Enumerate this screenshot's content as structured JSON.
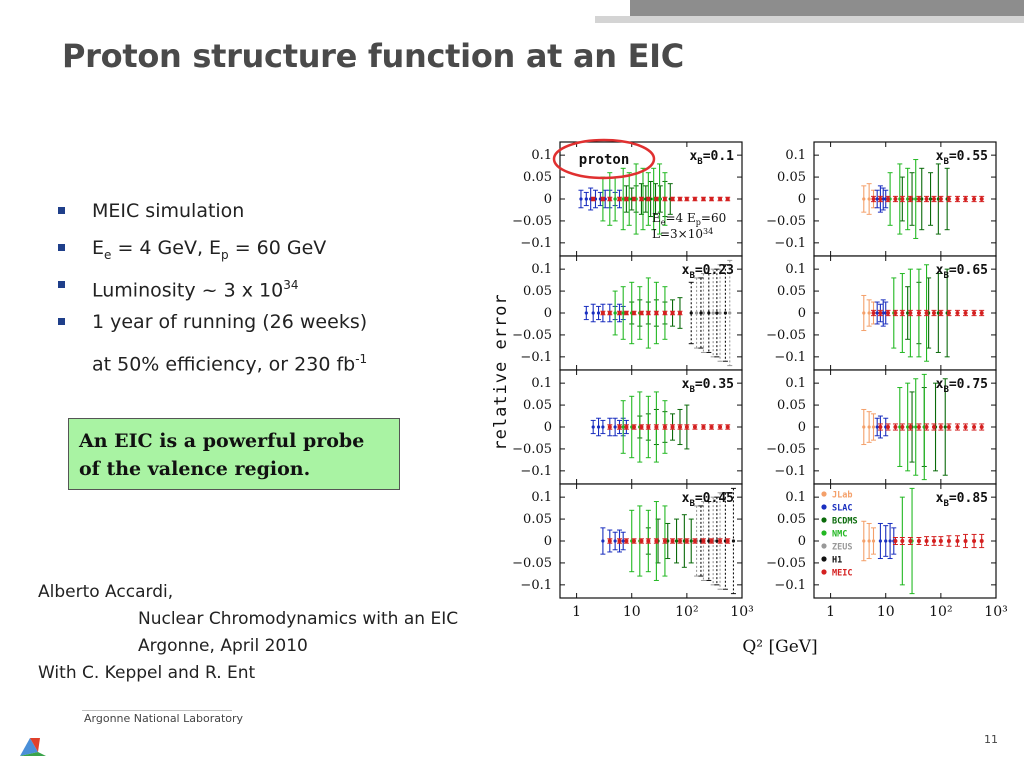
{
  "slide": {
    "title": "Proton structure function at an EIC",
    "bullets": [
      {
        "main": "MEIC simulation"
      },
      {
        "pre": "E",
        "sub": "e",
        "mid": " = 4 GeV, E",
        "sub2": "p",
        "post": " = 60 GeV"
      },
      {
        "pre": "Luminosity ~ 3 x 10",
        "sup": "34"
      },
      {
        "main": "1 year of running (26 weeks)"
      },
      {
        "pre": "at 50% efficiency, or 230 fb",
        "sup": "-1"
      }
    ],
    "callout": [
      "An EIC is a powerful probe",
      "of the valence region."
    ],
    "credits": {
      "author": "Alberto Accardi,",
      "talk": "Nuclear Chromodynamics with an EIC",
      "place": "Argonne, April 2010",
      "with": "With C. Keppel and R. Ent"
    },
    "footer": {
      "lab": "Argonne National Laboratory",
      "page": "11"
    }
  },
  "colors": {
    "bullet": "#1f3f8a",
    "callout_bg": "#a9f3a3",
    "JLab": "#f4a06a",
    "SLAC": "#1a2fbf",
    "BCDMS": "#0a6a0a",
    "NMC": "#22b822",
    "ZEUS": "#999999",
    "H1": "#111111",
    "MEIC": "#d42020",
    "highlight_ring": "#e03030"
  },
  "chart_data": {
    "type": "scatter",
    "ylabel": "relative error",
    "xlabel": "Q² [GeV]",
    "xscale": "log",
    "xlim": [
      0.5,
      1000
    ],
    "ylim": [
      -0.13,
      0.13
    ],
    "xticks": [
      "1",
      "10",
      "10²",
      "10³"
    ],
    "yticks": [
      "0.1",
      "0.05",
      "0",
      "−0.05",
      "−0.1"
    ],
    "corner_label": "proton",
    "annotation": [
      "E",
      "e",
      "=4  E",
      "p",
      "=60",
      "L=3×10",
      "34"
    ],
    "legend": [
      "JLab",
      "SLAC",
      "BCDMS",
      "NMC",
      "ZEUS",
      "H1",
      "MEIC"
    ],
    "panels": [
      {
        "xB": "0.1",
        "label": "x_B=0.1",
        "position": "left-1"
      },
      {
        "xB": "0.23",
        "label": "x_B=0.23",
        "position": "left-2"
      },
      {
        "xB": "0.35",
        "label": "x_B=0.35",
        "position": "left-3"
      },
      {
        "xB": "0.45",
        "label": "x_B=0.45",
        "position": "left-4"
      },
      {
        "xB": "0.55",
        "label": "x_B=0.55",
        "position": "right-1"
      },
      {
        "xB": "0.65",
        "label": "x_B=0.65",
        "position": "right-2"
      },
      {
        "xB": "0.75",
        "label": "x_B=0.75",
        "position": "right-3"
      },
      {
        "xB": "0.85",
        "label": "x_B=0.85",
        "position": "right-4"
      }
    ],
    "series": [
      {
        "name": "JLab",
        "panels": {
          "0.55": {
            "x": [
              4,
              5,
              6
            ],
            "err": [
              0.03,
              0.035,
              0.02
            ]
          },
          "0.65": {
            "x": [
              4,
              5,
              6
            ],
            "err": [
              0.04,
              0.03,
              0.025
            ]
          },
          "0.75": {
            "x": [
              4,
              5,
              6
            ],
            "err": [
              0.04,
              0.035,
              0.03
            ]
          },
          "0.85": {
            "x": [
              4,
              5,
              6
            ],
            "err": [
              0.045,
              0.04,
              0.03
            ]
          }
        }
      },
      {
        "name": "SLAC",
        "panels": {
          "0.1": {
            "x": [
              1.2,
              1.5,
              1.8,
              2.2,
              2.7,
              3.3,
              4,
              5,
              6
            ],
            "err": [
              0.02,
              0.015,
              0.025,
              0.02,
              0.015,
              0.02,
              0.02,
              0.015,
              0.02
            ]
          },
          "0.23": {
            "x": [
              1.5,
              2,
              2.5,
              3,
              4,
              5,
              6,
              7
            ],
            "err": [
              0.015,
              0.02,
              0.015,
              0.02,
              0.02,
              0.015,
              0.02,
              0.015
            ]
          },
          "0.35": {
            "x": [
              2,
              2.5,
              3,
              4,
              5,
              6,
              7,
              8
            ],
            "err": [
              0.015,
              0.02,
              0.015,
              0.02,
              0.02,
              0.015,
              0.02,
              0.015
            ]
          },
          "0.45": {
            "x": [
              3,
              4,
              5,
              6,
              7
            ],
            "err": [
              0.03,
              0.025,
              0.02,
              0.025,
              0.02
            ]
          },
          "0.55": {
            "x": [
              7,
              8,
              9,
              10
            ],
            "err": [
              0.02,
              0.03,
              0.025,
              0.02
            ]
          },
          "0.65": {
            "x": [
              7,
              8,
              9,
              10
            ],
            "err": [
              0.025,
              0.02,
              0.03,
              0.025
            ]
          },
          "0.75": {
            "x": [
              7,
              8,
              10
            ],
            "err": [
              0.02,
              0.025,
              0.02
            ]
          },
          "0.85": {
            "x": [
              8,
              10,
              12,
              14
            ],
            "err": [
              0.04,
              0.035,
              0.04,
              0.03
            ]
          }
        }
      },
      {
        "name": "BCDMS",
        "panels": {
          "0.1": {
            "x": [
              8,
              10,
              12,
              15,
              18,
              22,
              27,
              33,
              40,
              50
            ],
            "err": [
              0.03,
              0.025,
              0.03,
              0.035,
              0.03,
              0.04,
              0.035,
              0.03,
              0.04,
              0.035
            ]
          },
          "0.23": {
            "x": [
              10,
              14,
              20,
              28,
              40,
              55,
              75
            ],
            "err": [
              0.025,
              0.03,
              0.025,
              0.03,
              0.025,
              0.03,
              0.035
            ]
          },
          "0.35": {
            "x": [
              14,
              20,
              28,
              40,
              55,
              75,
              100
            ],
            "err": [
              0.025,
              0.03,
              0.04,
              0.035,
              0.03,
              0.04,
              0.05
            ]
          },
          "0.45": {
            "x": [
              20,
              30,
              45,
              65,
              90,
              120
            ],
            "err": [
              0.03,
              0.05,
              0.04,
              0.05,
              0.06,
              0.05
            ]
          },
          "0.55": {
            "x": [
              20,
              30,
              45,
              65,
              90,
              130
            ],
            "err": [
              0.05,
              0.06,
              0.07,
              0.06,
              0.08,
              0.07
            ]
          },
          "0.65": {
            "x": [
              25,
              40,
              60,
              90,
              130
            ],
            "err": [
              0.06,
              0.07,
              0.08,
              0.09,
              0.1
            ]
          },
          "0.75": {
            "x": [
              30,
              50,
              80,
              120
            ],
            "err": [
              0.08,
              0.09,
              0.1,
              0.11
            ]
          }
        }
      },
      {
        "name": "NMC",
        "panels": {
          "0.1": {
            "x": [
              3,
              4,
              5,
              7,
              9,
              12,
              16,
              20,
              25,
              32,
              40
            ],
            "err": [
              0.05,
              0.06,
              0.05,
              0.07,
              0.06,
              0.08,
              0.07,
              0.06,
              0.07,
              0.08,
              0.06
            ]
          },
          "0.23": {
            "x": [
              5,
              7,
              10,
              14,
              20,
              28,
              40
            ],
            "err": [
              0.05,
              0.06,
              0.07,
              0.06,
              0.08,
              0.07,
              0.06
            ]
          },
          "0.35": {
            "x": [
              7,
              10,
              14,
              20,
              28,
              40
            ],
            "err": [
              0.06,
              0.07,
              0.08,
              0.07,
              0.08,
              0.06
            ]
          },
          "0.45": {
            "x": [
              10,
              14,
              20,
              28,
              40
            ],
            "err": [
              0.07,
              0.08,
              0.07,
              0.09,
              0.08
            ]
          },
          "0.55": {
            "x": [
              12,
              18,
              25,
              35
            ],
            "err": [
              0.06,
              0.08,
              0.07,
              0.09
            ]
          },
          "0.65": {
            "x": [
              14,
              20,
              28,
              40,
              55
            ],
            "err": [
              0.08,
              0.09,
              0.1,
              0.1,
              0.11
            ]
          },
          "0.75": {
            "x": [
              18,
              25,
              35,
              50
            ],
            "err": [
              0.09,
              0.1,
              0.11,
              0.12
            ]
          },
          "0.85": {
            "x": [
              20,
              30
            ],
            "err": [
              0.1,
              0.12
            ]
          }
        }
      },
      {
        "name": "ZEUS",
        "panels": {
          "0.23": {
            "x": [
              150,
              200,
              300,
              400,
              600
            ],
            "err": [
              0.08,
              0.09,
              0.1,
              0.11,
              0.12
            ]
          },
          "0.45": {
            "x": [
              150,
              200,
              300,
              400
            ],
            "err": [
              0.08,
              0.09,
              0.1,
              0.11
            ]
          }
        }
      },
      {
        "name": "H1",
        "panels": {
          "0.23": {
            "x": [
              120,
              180,
              250,
              350,
              500
            ],
            "err": [
              0.07,
              0.08,
              0.09,
              0.1,
              0.11
            ]
          },
          "0.45": {
            "x": [
              180,
              250,
              350,
              500,
              700
            ],
            "err": [
              0.08,
              0.09,
              0.1,
              0.11,
              0.12
            ]
          }
        }
      },
      {
        "name": "MEIC",
        "panels": {
          "0.1": {
            "x": [
              2,
              3,
              4,
              6,
              8,
              11,
              15,
              20,
              28,
              40,
              55,
              75,
              100,
              140,
              200,
              280,
              400,
              550
            ],
            "err": [
              0.004,
              0.004,
              0.004,
              0.004,
              0.004,
              0.004,
              0.004,
              0.004,
              0.004,
              0.004,
              0.004,
              0.004,
              0.004,
              0.004,
              0.004,
              0.004,
              0.004,
              0.004
            ]
          },
          "0.23": {
            "x": [
              3,
              4,
              6,
              8,
              11,
              15,
              20,
              28,
              40,
              55,
              75
            ],
            "err": [
              0.004,
              0.004,
              0.004,
              0.004,
              0.004,
              0.004,
              0.004,
              0.004,
              0.004,
              0.004,
              0.004
            ]
          },
          "0.35": {
            "x": [
              4,
              6,
              8,
              11,
              15,
              20,
              28,
              40,
              55,
              75,
              100,
              140,
              200,
              280,
              400,
              550
            ],
            "err": [
              0.005,
              0.005,
              0.005,
              0.005,
              0.005,
              0.005,
              0.005,
              0.005,
              0.005,
              0.005,
              0.005,
              0.005,
              0.005,
              0.005,
              0.005,
              0.005
            ]
          },
          "0.45": {
            "x": [
              4,
              6,
              8,
              11,
              15,
              20,
              28,
              40,
              55,
              75,
              100,
              140,
              200,
              280,
              400,
              550
            ],
            "err": [
              0.005,
              0.005,
              0.005,
              0.005,
              0.005,
              0.005,
              0.005,
              0.005,
              0.005,
              0.005,
              0.005,
              0.005,
              0.005,
              0.005,
              0.005,
              0.005
            ]
          },
          "0.55": {
            "x": [
              6,
              8,
              11,
              15,
              20,
              28,
              40,
              55,
              75,
              100,
              140,
              200,
              280,
              400,
              550
            ],
            "err": [
              0.006,
              0.006,
              0.006,
              0.006,
              0.006,
              0.006,
              0.006,
              0.006,
              0.006,
              0.006,
              0.006,
              0.006,
              0.006,
              0.006,
              0.006
            ]
          },
          "0.65": {
            "x": [
              6,
              8,
              11,
              15,
              20,
              28,
              40,
              55,
              75,
              100,
              140,
              200,
              280,
              400,
              550
            ],
            "err": [
              0.006,
              0.006,
              0.006,
              0.006,
              0.006,
              0.006,
              0.006,
              0.006,
              0.006,
              0.006,
              0.006,
              0.006,
              0.006,
              0.006,
              0.006
            ]
          },
          "0.75": {
            "x": [
              8,
              11,
              15,
              20,
              28,
              40,
              55,
              75,
              100,
              140,
              200,
              280,
              400,
              550
            ],
            "err": [
              0.007,
              0.007,
              0.007,
              0.007,
              0.007,
              0.007,
              0.007,
              0.007,
              0.007,
              0.007,
              0.007,
              0.007,
              0.007,
              0.007
            ]
          },
          "0.85": {
            "x": [
              15,
              20,
              28,
              40,
              55,
              75,
              100,
              140,
              200,
              280,
              400,
              550
            ],
            "err": [
              0.008,
              0.008,
              0.008,
              0.008,
              0.01,
              0.01,
              0.01,
              0.012,
              0.012,
              0.015,
              0.015,
              0.015
            ]
          }
        }
      }
    ]
  }
}
